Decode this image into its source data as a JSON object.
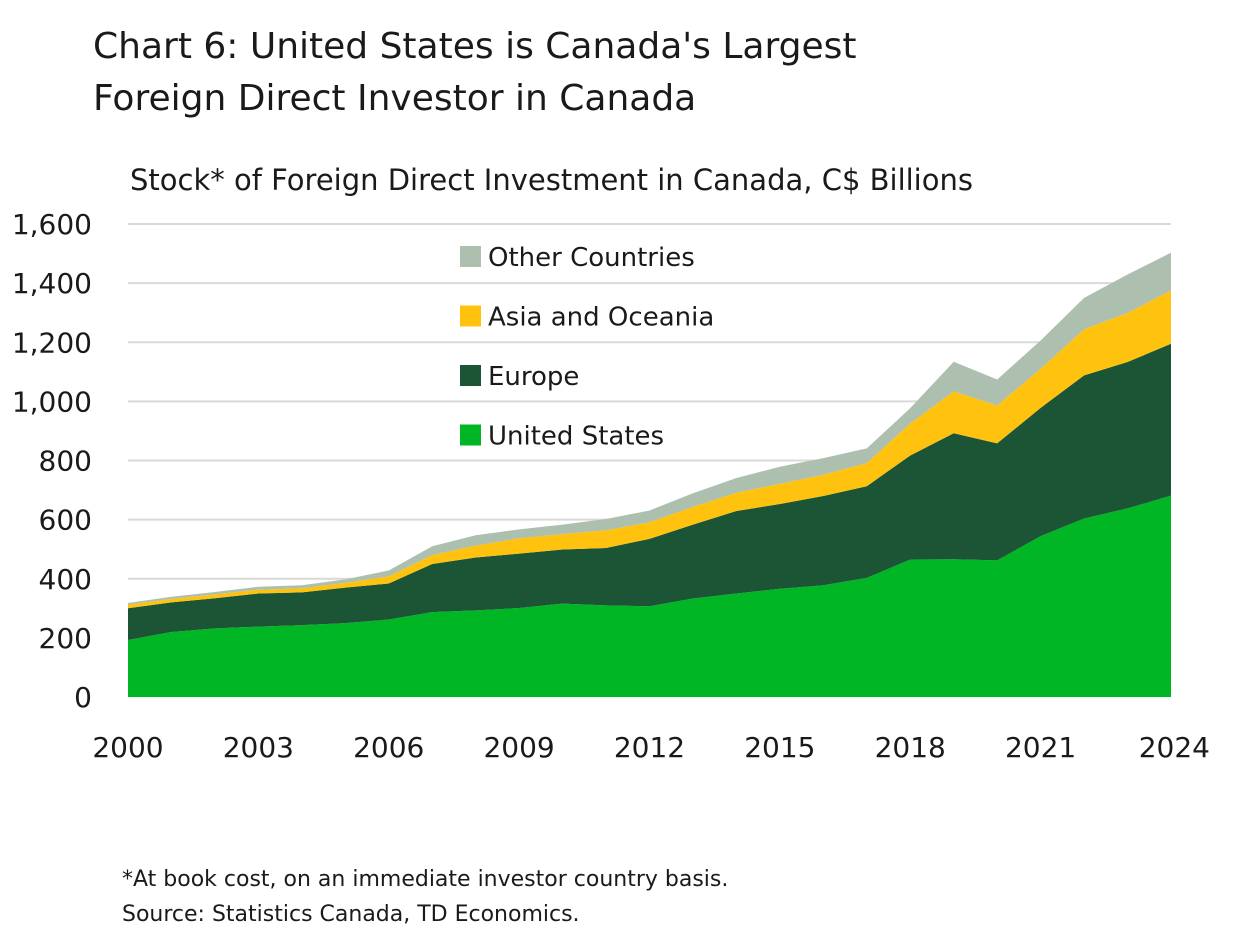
{
  "chart_data": {
    "type": "area",
    "stacked": true,
    "title": "Chart 6: United States is Canada's Largest Foreign Direct Investor in Canada",
    "title_lines": [
      "Chart 6: United States is Canada's Largest",
      "Foreign Direct Investor in Canada"
    ],
    "subtitle": "Stock* of Foreign Direct Investment in Canada, C$ Billions",
    "xlabel": "",
    "ylabel": "",
    "ylim": [
      0,
      1600
    ],
    "yticks": [
      0,
      200,
      400,
      600,
      800,
      1000,
      1200,
      1400,
      1600
    ],
    "ytick_labels": [
      "0",
      "200",
      "400",
      "600",
      "800",
      "1,000",
      "1,200",
      "1,400",
      "1,600"
    ],
    "xticks": [
      2000,
      2003,
      2006,
      2009,
      2012,
      2015,
      2018,
      2021,
      2024
    ],
    "xtick_labels": [
      "2000",
      "2003",
      "2006",
      "2009",
      "2012",
      "2015",
      "2018",
      "2021",
      "2024"
    ],
    "grid": true,
    "legend_position": "top-center",
    "x": [
      2000,
      2001,
      2002,
      2003,
      2004,
      2005,
      2006,
      2007,
      2008,
      2009,
      2010,
      2011,
      2012,
      2013,
      2014,
      2015,
      2016,
      2017,
      2018,
      2019,
      2020,
      2021,
      2022,
      2023,
      2024
    ],
    "series": [
      {
        "name": "United States",
        "color": "#00b624",
        "values": [
          193,
          220,
          232,
          238,
          243,
          250,
          262,
          287,
          293,
          301,
          316,
          310,
          307,
          333,
          350,
          366,
          378,
          403,
          465,
          466,
          462,
          544,
          604,
          638,
          681
        ]
      },
      {
        "name": "Europe",
        "color": "#1c5436",
        "values": [
          107,
          100,
          102,
          112,
          111,
          120,
          122,
          163,
          179,
          184,
          183,
          194,
          228,
          250,
          279,
          287,
          302,
          310,
          352,
          426,
          396,
          434,
          484,
          495,
          514
        ]
      },
      {
        "name": "Asia and Oceania",
        "color": "#ffc20e",
        "values": [
          12,
          12,
          13,
          13,
          14,
          16,
          24,
          30,
          40,
          52,
          52,
          60,
          56,
          60,
          62,
          68,
          72,
          78,
          108,
          142,
          128,
          132,
          156,
          166,
          180
        ]
      },
      {
        "name": "Other Countries",
        "color": "#adbfae",
        "values": [
          6,
          7,
          8,
          10,
          10,
          12,
          20,
          30,
          35,
          30,
          32,
          38,
          40,
          46,
          50,
          58,
          56,
          50,
          52,
          100,
          88,
          96,
          106,
          130,
          128
        ]
      }
    ],
    "legend_order": [
      3,
      2,
      1,
      0
    ]
  },
  "footnotes": [
    "*At book cost, on an immediate investor country basis.",
    "Source: Statistics Canada, TD Economics."
  ]
}
